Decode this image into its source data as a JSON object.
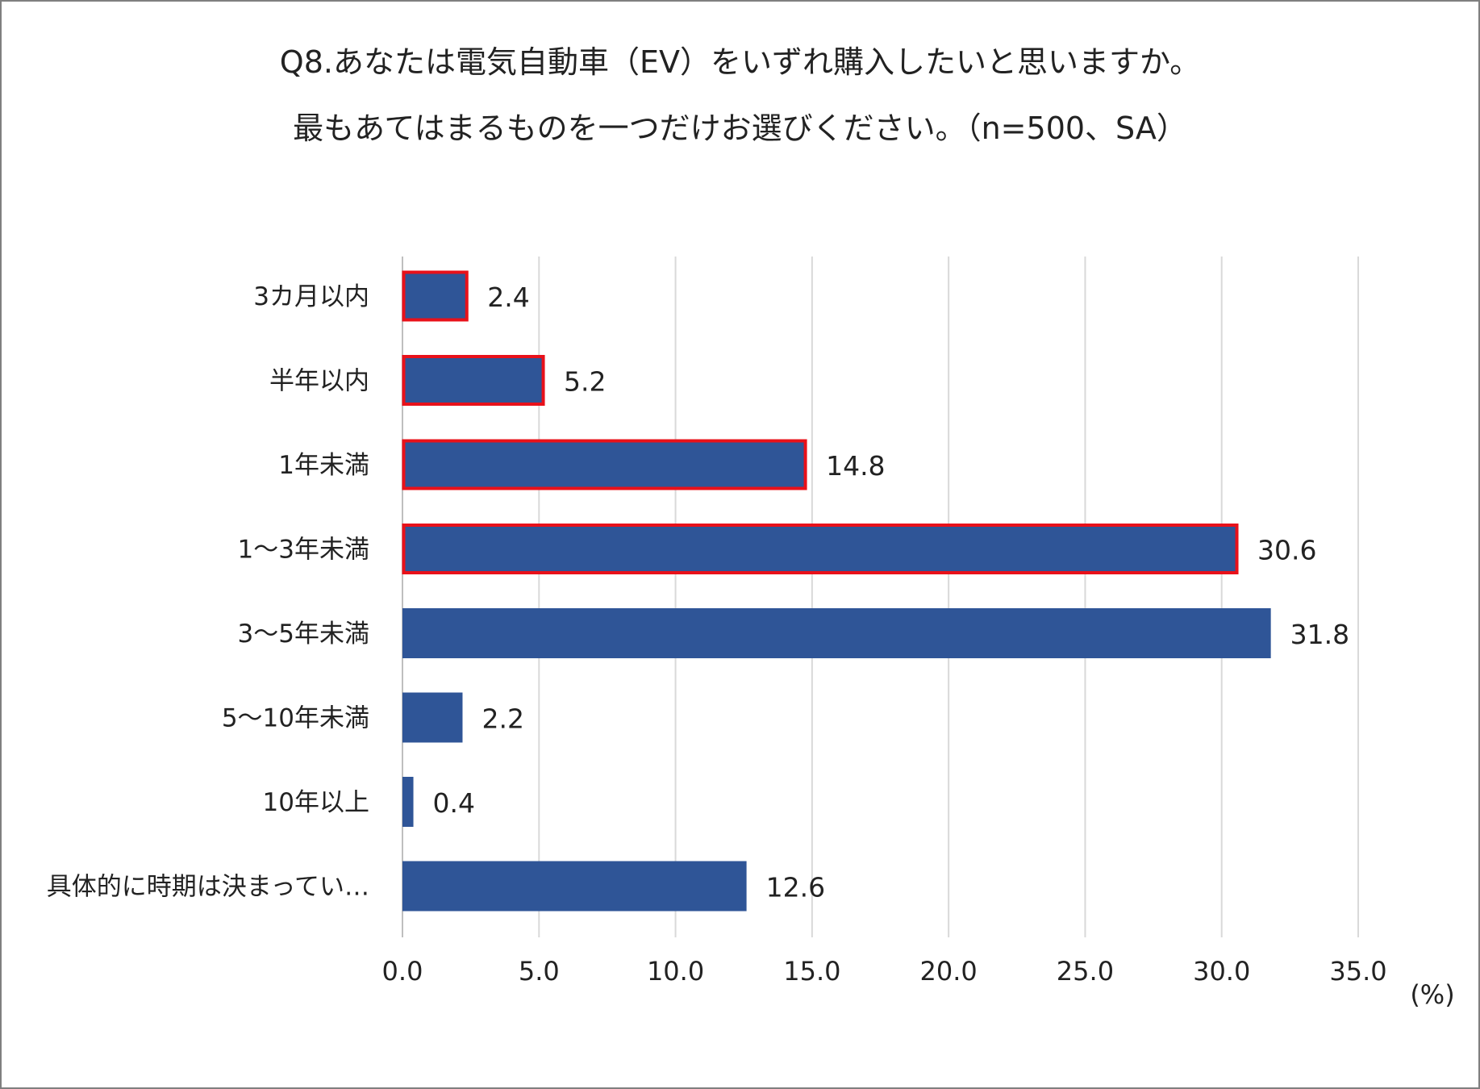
{
  "chart_data": {
    "type": "bar",
    "orientation": "horizontal",
    "title": "Q8.あなたは電気自動車（EV）をいずれ購入したいと思いますか。",
    "subtitle": "最もあてはまるものを一つだけお選びください。（n=500、SA）",
    "categories": [
      "3カ月以内",
      "半年以内",
      "1年未満",
      "1～3年未満",
      "3～5年未満",
      "5～10年未満",
      "10年以上",
      "具体的に時期は決まってい…"
    ],
    "values": [
      2.4,
      5.2,
      14.8,
      30.6,
      31.8,
      2.2,
      0.4,
      12.6
    ],
    "value_labels": [
      "2.4",
      "5.2",
      "14.8",
      "30.6",
      "31.8",
      "2.2",
      "0.4",
      "12.6"
    ],
    "highlighted": [
      true,
      true,
      true,
      true,
      false,
      false,
      false,
      false
    ],
    "xlim": [
      0,
      35
    ],
    "xticks": [
      "0.0",
      "5.0",
      "10.0",
      "15.0",
      "20.0",
      "25.0",
      "30.0",
      "35.0"
    ],
    "xunit": "(%)",
    "grid": true,
    "colors": {
      "bar": "#2f5597",
      "highlight_border": "#e8111a",
      "grid": "#d9d9d9"
    }
  }
}
